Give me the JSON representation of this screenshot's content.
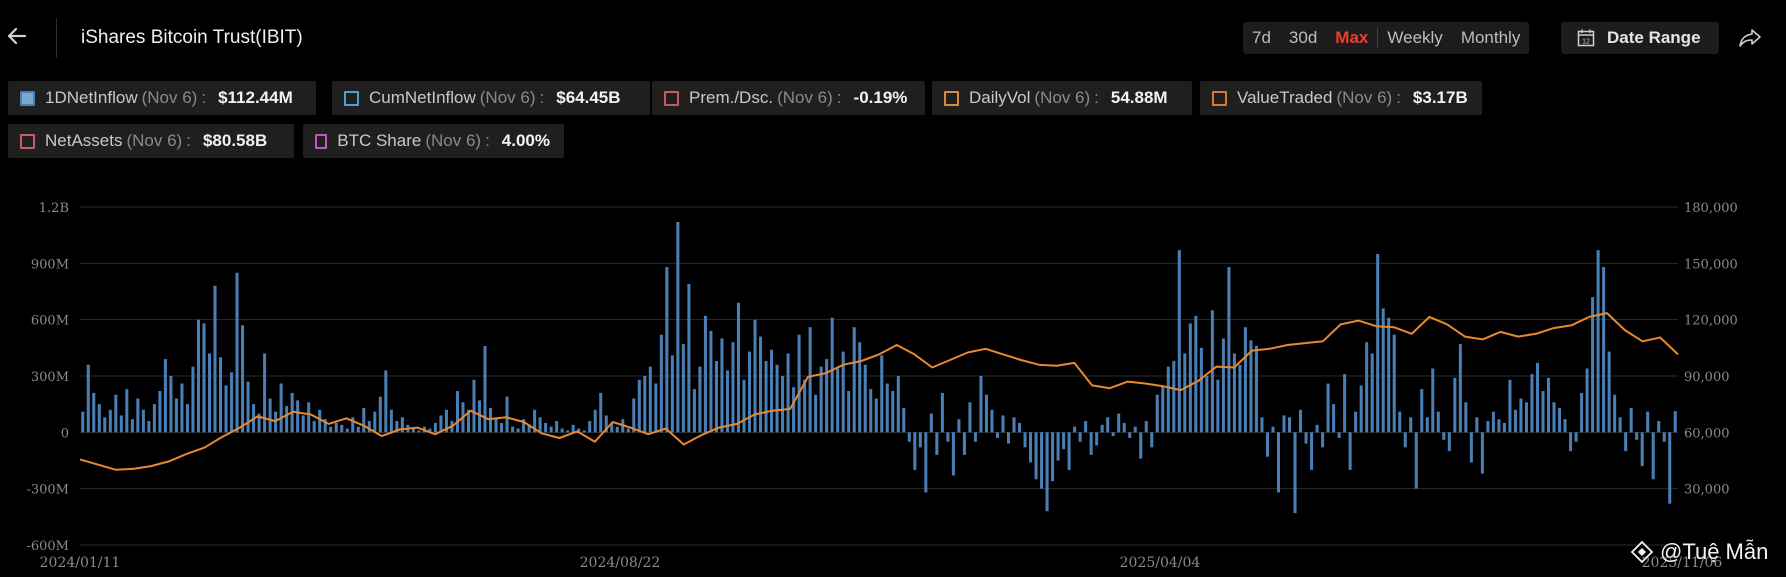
{
  "header": {
    "title": "iShares Bitcoin Trust(IBIT)",
    "ranges": [
      "7d",
      "30d",
      "Max",
      "Weekly",
      "Monthly"
    ],
    "active_range": "Max",
    "date_range_label": "Date Range",
    "icons": {
      "back": "arrow-left-icon",
      "calendar": "calendar-icon",
      "share": "share-icon"
    }
  },
  "legend": [
    {
      "name": "1DNetInflow",
      "date": "(Nov 6)",
      "value": "$112.44M",
      "color": "#4a7fb5",
      "checked": true
    },
    {
      "name": "CumNetInflow",
      "date": "(Nov 6)",
      "value": "$64.45B",
      "color": "#4aa3c8",
      "checked": false
    },
    {
      "name": "Prem./Dsc.",
      "date": "(Nov 6)",
      "value": "-0.19%",
      "color": "#c85a5a",
      "checked": false
    },
    {
      "name": "DailyVol",
      "date": "(Nov 6)",
      "value": "54.88M",
      "color": "#d98a3d",
      "checked": false
    },
    {
      "name": "ValueTraded",
      "date": "(Nov 6)",
      "value": "$3.17B",
      "color": "#d9783a",
      "checked": false
    },
    {
      "name": "NetAssets",
      "date": "(Nov 6)",
      "value": "$80.58B",
      "color": "#c85a6a",
      "checked": false
    },
    {
      "name": "BTC Share",
      "date": "(Nov 6)",
      "value": "4.00%",
      "color": "#c05ab8",
      "checked": false
    }
  ],
  "watermark": "@Tuệ Mẫn",
  "chart_data": {
    "type": "bar",
    "title": "",
    "xlabel": "",
    "ylabel": "",
    "x_ticks": [
      "2024/01/11",
      "2024/08/22",
      "2025/04/04",
      "2025/11/06"
    ],
    "y_left_ticks": [
      "1.2B",
      "900M",
      "600M",
      "300M",
      "0",
      "-300M",
      "-600M"
    ],
    "y_left_range": [
      -600000000,
      1200000000
    ],
    "y_right_ticks": [
      "180,000",
      "150,000",
      "120,000",
      "90,000",
      "60,000",
      "30,000"
    ],
    "y_right_range": [
      0,
      180000
    ],
    "grid": true,
    "colors": {
      "bars": "#4a7fb5",
      "line": "#e8882f",
      "grid": "#2b2b2b",
      "ticks": "#8a8a8a"
    },
    "series": [
      {
        "type": "bar",
        "axis": "left",
        "unit": "USD",
        "values": [
          110000000,
          360000000,
          210000000,
          150000000,
          80000000,
          120000000,
          200000000,
          90000000,
          230000000,
          70000000,
          180000000,
          120000000,
          60000000,
          150000000,
          220000000,
          390000000,
          300000000,
          180000000,
          260000000,
          150000000,
          350000000,
          600000000,
          580000000,
          420000000,
          780000000,
          400000000,
          250000000,
          320000000,
          850000000,
          570000000,
          270000000,
          150000000,
          100000000,
          420000000,
          180000000,
          110000000,
          260000000,
          140000000,
          210000000,
          170000000,
          90000000,
          160000000,
          60000000,
          120000000,
          70000000,
          30000000,
          50000000,
          40000000,
          20000000,
          80000000,
          30000000,
          130000000,
          60000000,
          110000000,
          190000000,
          330000000,
          120000000,
          60000000,
          80000000,
          40000000,
          20000000,
          10000000,
          30000000,
          20000000,
          50000000,
          90000000,
          120000000,
          60000000,
          220000000,
          160000000,
          120000000,
          280000000,
          170000000,
          460000000,
          130000000,
          80000000,
          50000000,
          190000000,
          30000000,
          20000000,
          70000000,
          40000000,
          120000000,
          80000000,
          50000000,
          30000000,
          60000000,
          20000000,
          10000000,
          40000000,
          20000000,
          10000000,
          60000000,
          120000000,
          210000000,
          90000000,
          50000000,
          30000000,
          70000000,
          20000000,
          180000000,
          280000000,
          300000000,
          350000000,
          260000000,
          520000000,
          880000000,
          410000000,
          1120000000,
          470000000,
          790000000,
          230000000,
          350000000,
          620000000,
          540000000,
          380000000,
          500000000,
          330000000,
          480000000,
          690000000,
          280000000,
          430000000,
          600000000,
          510000000,
          380000000,
          440000000,
          360000000,
          300000000,
          420000000,
          240000000,
          520000000,
          280000000,
          560000000,
          200000000,
          350000000,
          390000000,
          610000000,
          340000000,
          430000000,
          220000000,
          560000000,
          480000000,
          360000000,
          230000000,
          180000000,
          410000000,
          260000000,
          220000000,
          300000000,
          130000000,
          -50000000,
          -200000000,
          -80000000,
          -320000000,
          100000000,
          -120000000,
          210000000,
          -50000000,
          -230000000,
          70000000,
          -120000000,
          160000000,
          -50000000,
          300000000,
          200000000,
          120000000,
          -30000000,
          90000000,
          -60000000,
          80000000,
          50000000,
          -80000000,
          -160000000,
          -250000000,
          -300000000,
          -420000000,
          -260000000,
          -150000000,
          -90000000,
          -200000000,
          30000000,
          -50000000,
          60000000,
          -120000000,
          -70000000,
          40000000,
          80000000,
          -20000000,
          100000000,
          50000000,
          -30000000,
          30000000,
          -140000000,
          60000000,
          -80000000,
          200000000,
          250000000,
          350000000,
          380000000,
          970000000,
          420000000,
          580000000,
          620000000,
          450000000,
          300000000,
          650000000,
          280000000,
          500000000,
          880000000,
          420000000,
          360000000,
          560000000,
          490000000,
          460000000,
          80000000,
          -130000000,
          30000000,
          -320000000,
          90000000,
          80000000,
          -430000000,
          120000000,
          -60000000,
          -200000000,
          40000000,
          -80000000,
          260000000,
          150000000,
          -30000000,
          310000000,
          -200000000,
          110000000,
          250000000,
          480000000,
          420000000,
          950000000,
          660000000,
          610000000,
          520000000,
          110000000,
          -80000000,
          80000000,
          -300000000,
          230000000,
          80000000,
          340000000,
          110000000,
          -40000000,
          -100000000,
          290000000,
          470000000,
          160000000,
          -160000000,
          80000000,
          -220000000,
          60000000,
          110000000,
          70000000,
          50000000,
          280000000,
          120000000,
          180000000,
          160000000,
          310000000,
          370000000,
          220000000,
          290000000,
          160000000,
          130000000,
          70000000,
          -100000000,
          -50000000,
          210000000,
          340000000,
          720000000,
          970000000,
          880000000,
          430000000,
          200000000,
          80000000,
          -100000000,
          130000000,
          -40000000,
          -180000000,
          110000000,
          -250000000,
          60000000,
          -50000000,
          -380000000,
          112440000
        ]
      },
      {
        "type": "line",
        "axis": "right",
        "unit": "BTC price",
        "values": [
          45600,
          42800,
          40100,
          40500,
          42000,
          44500,
          48500,
          51800,
          57500,
          62500,
          68500,
          66000,
          71000,
          69500,
          64500,
          67500,
          63500,
          58000,
          61500,
          62500,
          59000,
          63500,
          71500,
          67000,
          68000,
          65500,
          59500,
          57000,
          60500,
          55000,
          65500,
          62500,
          59000,
          62000,
          53500,
          58500,
          62500,
          64500,
          69500,
          71500,
          72500,
          89500,
          91500,
          96000,
          98000,
          101500,
          106500,
          101500,
          94500,
          98500,
          102500,
          104500,
          101500,
          98500,
          96000,
          95500,
          97000,
          85000,
          83500,
          87000,
          86000,
          84500,
          82500,
          87500,
          95000,
          94500,
          103500,
          104500,
          106500,
          107500,
          108500,
          117500,
          119500,
          116500,
          116000,
          112500,
          121500,
          117500,
          111000,
          109500,
          113500,
          111000,
          112500,
          115500,
          117000,
          121500,
          123500,
          114500,
          108500,
          110500,
          101500
        ]
      }
    ]
  }
}
